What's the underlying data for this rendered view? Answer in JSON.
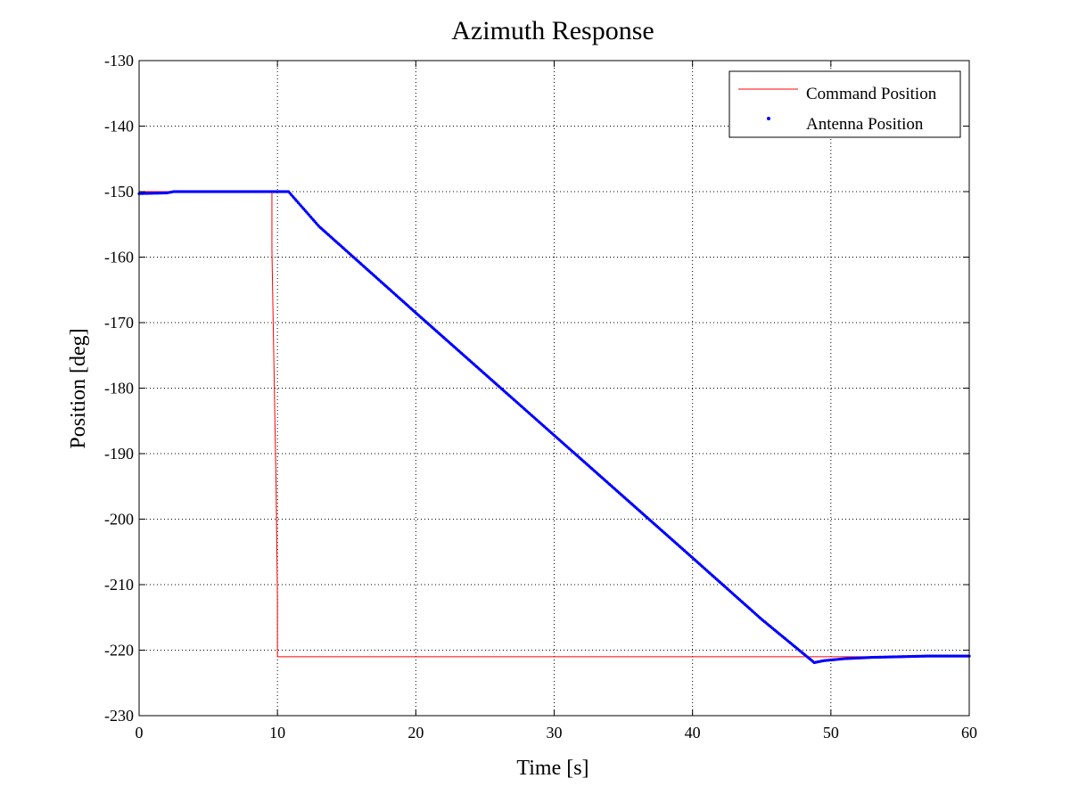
{
  "chart_data": {
    "type": "line",
    "title": "Azimuth Response",
    "xlabel": "Time [s]",
    "ylabel": "Position [deg]",
    "xlim": [
      0,
      60
    ],
    "ylim": [
      -230,
      -130
    ],
    "xticks": [
      0,
      10,
      20,
      30,
      40,
      50,
      60
    ],
    "yticks": [
      -130,
      -140,
      -150,
      -160,
      -170,
      -180,
      -190,
      -200,
      -210,
      -220,
      -230
    ],
    "grid": true,
    "legend_position": "top-right",
    "colors": {
      "command": "#ff0000",
      "antenna": "#0000ff"
    },
    "series": [
      {
        "name": "Command Position",
        "style": "line",
        "x": [
          0,
          9.6,
          9.6,
          9.75,
          9.9,
          10.0,
          10.0,
          60
        ],
        "y": [
          -150,
          -150,
          -159,
          -177,
          -195,
          -212,
          -221,
          -221
        ]
      },
      {
        "name": "Antenna Position",
        "style": "markers",
        "x": [
          0,
          2,
          2.5,
          5,
          8,
          9.6,
          10.8,
          13,
          20,
          30,
          40,
          45,
          48.8,
          49.5,
          51,
          53,
          55,
          57,
          60
        ],
        "y": [
          -150.3,
          -150.2,
          -150.0,
          -150.0,
          -150.0,
          -150.0,
          -150.0,
          -155.3,
          -168.5,
          -187.2,
          -205.9,
          -215.3,
          -221.9,
          -221.6,
          -221.3,
          -221.1,
          -221.0,
          -220.9,
          -220.9
        ]
      }
    ]
  }
}
